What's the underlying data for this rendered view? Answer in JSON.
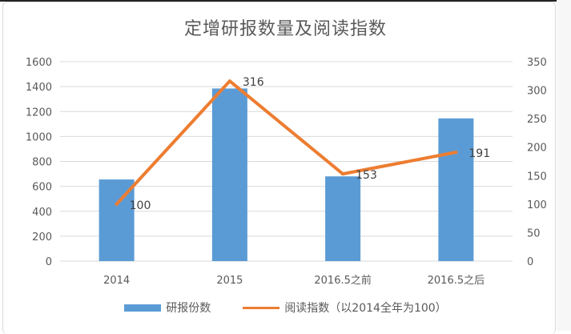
{
  "chart_data": {
    "type": "bar",
    "title": "定增研报数量及阅读指数",
    "categories": [
      "2014",
      "2015",
      "2016.5之前",
      "2016.5之后"
    ],
    "series": [
      {
        "name": "研报份数",
        "type": "bar",
        "axis": "left",
        "values": [
          655,
          1385,
          680,
          1145
        ]
      },
      {
        "name": "阅读指数（以2014全年为100）",
        "type": "line",
        "axis": "right",
        "values": [
          100,
          316,
          153,
          191
        ],
        "data_labels": [
          "100",
          "316",
          "153",
          "191"
        ]
      }
    ],
    "y_left": {
      "ylim": [
        0,
        1600
      ],
      "ticks": [
        "0",
        "200",
        "400",
        "600",
        "800",
        "1000",
        "1200",
        "1400",
        "1600"
      ]
    },
    "y_right": {
      "ylim": [
        0,
        350
      ],
      "ticks": [
        "0",
        "50",
        "100",
        "150",
        "200",
        "250",
        "300",
        "350"
      ]
    },
    "grid": true,
    "legend": "bottom",
    "colors": {
      "bar": "#5b9bd5",
      "line": "#ed7d31",
      "grid": "#d9d9d9",
      "text": "#595959"
    }
  }
}
